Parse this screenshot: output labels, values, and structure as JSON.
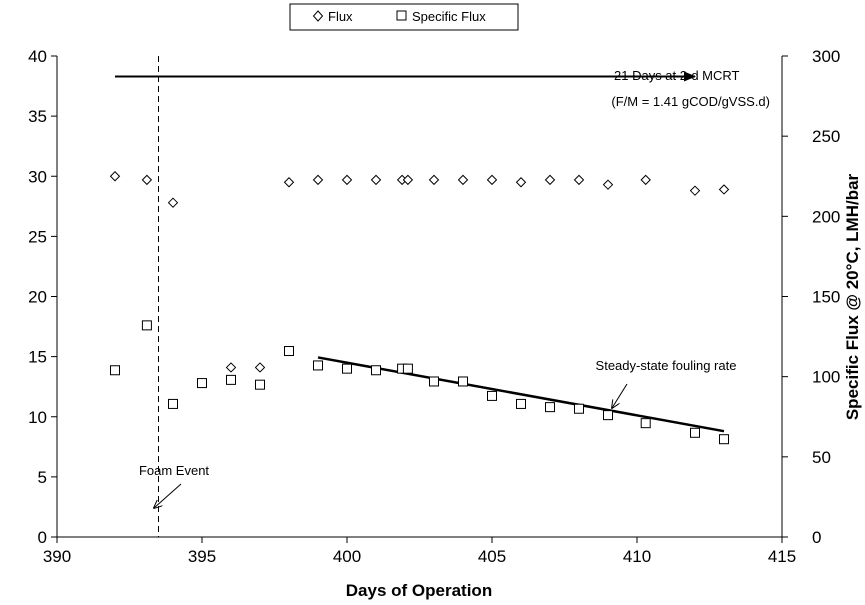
{
  "chart_data": {
    "type": "scatter",
    "xlabel": "Days of Operation",
    "ylabel": "",
    "y2label": "Specific Flux @ 20°C, LMH/bar",
    "xlim": [
      390,
      415
    ],
    "ylim": [
      0,
      40
    ],
    "y2lim": [
      0,
      300
    ],
    "xticks": [
      390,
      395,
      400,
      405,
      410,
      415
    ],
    "yticks": [
      0,
      5,
      10,
      15,
      20,
      25,
      30,
      35,
      40
    ],
    "y2ticks": [
      0,
      50,
      100,
      150,
      200,
      250,
      300
    ],
    "grid": false,
    "legend_position": "top-center",
    "series": [
      {
        "name": "Flux",
        "marker": "diamond",
        "axis": "left",
        "x": [
          392,
          393.1,
          394,
          396,
          397,
          398,
          399,
          400,
          401,
          401.9,
          402.1,
          403,
          404,
          405,
          406,
          407,
          408,
          409,
          410.3,
          412,
          413
        ],
        "y": [
          30.0,
          29.7,
          27.8,
          14.1,
          14.1,
          29.5,
          29.7,
          29.7,
          29.7,
          29.7,
          29.7,
          29.7,
          29.7,
          29.7,
          29.5,
          29.7,
          29.7,
          29.3,
          29.7,
          28.8,
          28.9
        ]
      },
      {
        "name": "Specific Flux",
        "marker": "square",
        "axis": "right",
        "x": [
          392,
          393.1,
          394,
          395,
          396,
          397,
          398,
          399,
          400,
          401,
          401.9,
          402.1,
          403,
          404,
          405,
          406,
          407,
          408,
          409,
          410.3,
          412,
          413
        ],
        "y": [
          104,
          132,
          83,
          96,
          98,
          95,
          116,
          107,
          105,
          104,
          105,
          105,
          97,
          97,
          88,
          83,
          81,
          80,
          76,
          71,
          65,
          61
        ]
      }
    ],
    "trendline": {
      "x": [
        399,
        413
      ],
      "y2": [
        112,
        66
      ]
    },
    "foam_event_x": 393.5,
    "mcrt_arrow_x": [
      392,
      412
    ],
    "mcrt_arrow_y": 38.3,
    "annotations": {
      "mcrt_line1": "21 Days at 2-d MCRT",
      "mcrt_line2": "(F/M = 1.41 gCOD/gVSS.d)",
      "foam": "Foam Event",
      "steady_state": "Steady-state fouling rate"
    }
  }
}
